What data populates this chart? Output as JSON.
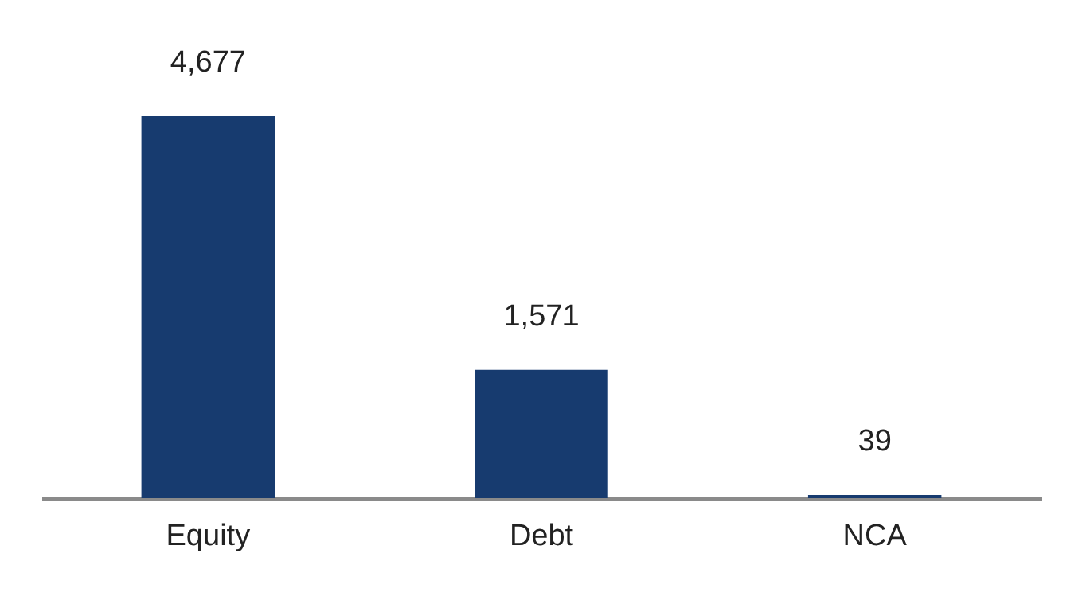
{
  "chart_data": {
    "type": "bar",
    "categories": [
      "Equity",
      "Debt",
      "NCA"
    ],
    "values": [
      4677,
      1571,
      39
    ],
    "value_labels": [
      "4,677",
      "1,571",
      "39"
    ],
    "color": "#173b6f",
    "grid": false
  }
}
